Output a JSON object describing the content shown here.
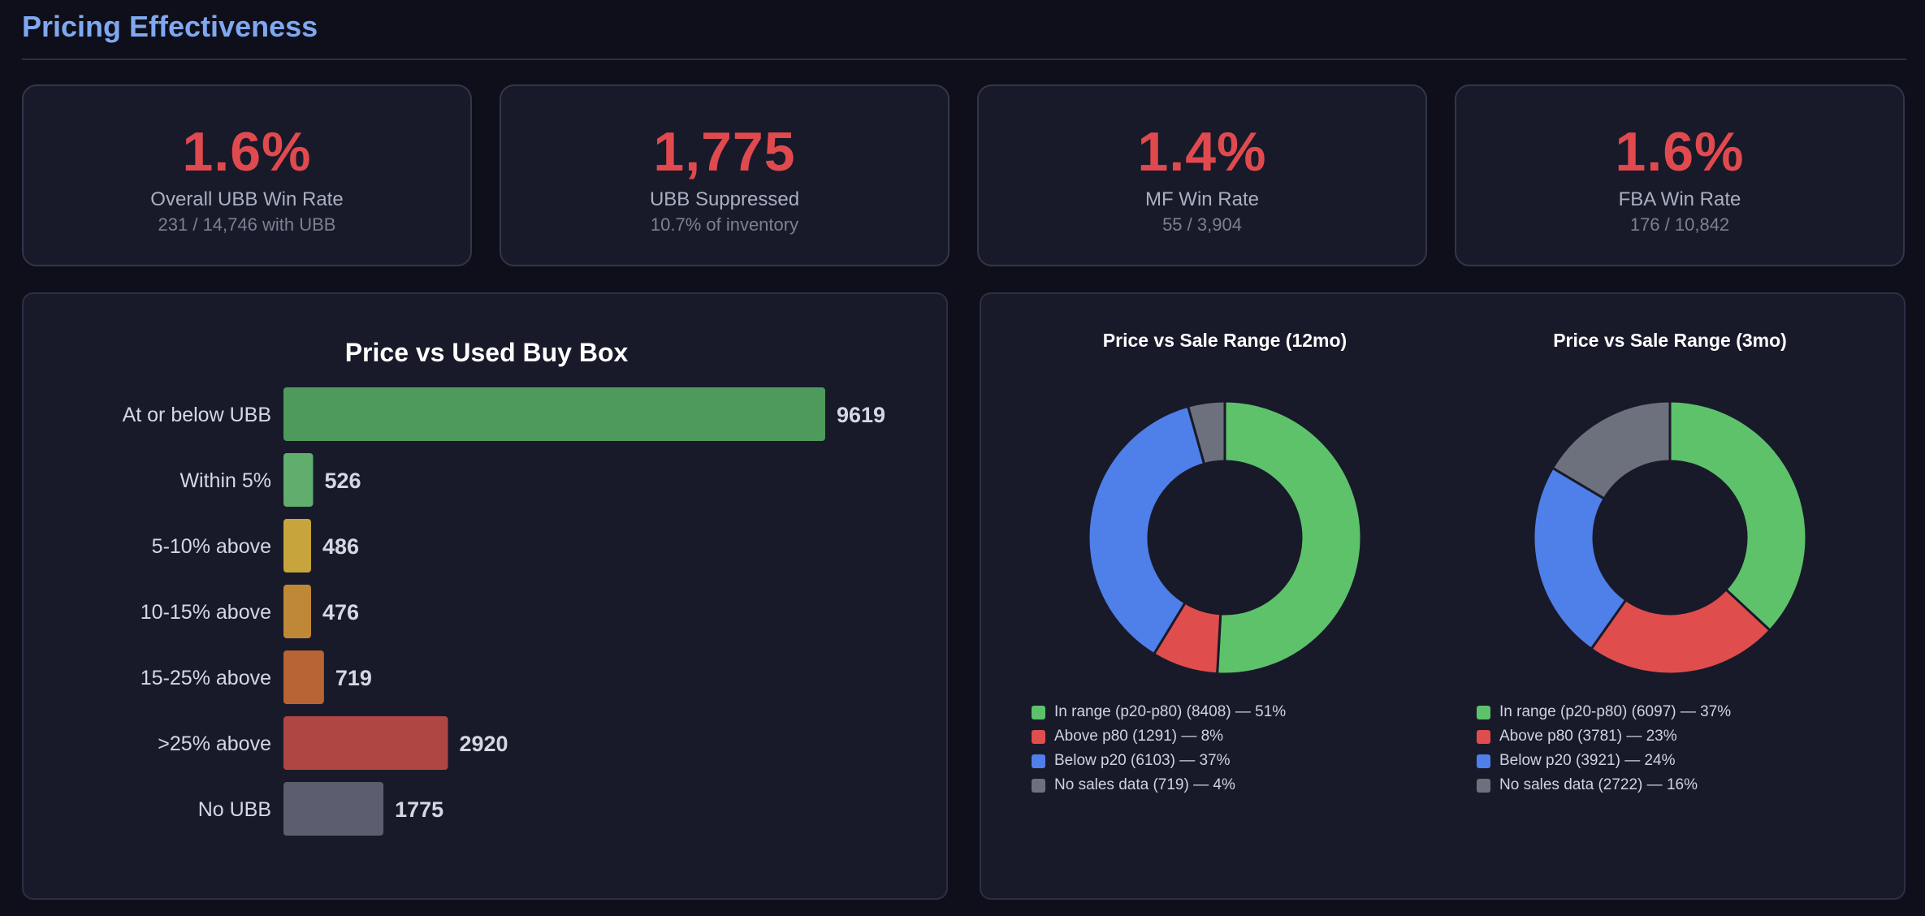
{
  "page": {
    "title": "Pricing Effectiveness"
  },
  "kpis": [
    {
      "value": "1.6%",
      "label": "Overall UBB Win Rate",
      "sub": "231 / 14,746 with UBB"
    },
    {
      "value": "1,775",
      "label": "UBB Suppressed",
      "sub": "10.7% of inventory"
    },
    {
      "value": "1.4%",
      "label": "MF Win Rate",
      "sub": "55 / 3,904"
    },
    {
      "value": "1.6%",
      "label": "FBA Win Rate",
      "sub": "176 / 10,842"
    }
  ],
  "chart_data": [
    {
      "type": "bar",
      "orientation": "horizontal",
      "title": "Price vs Used Buy Box",
      "categories": [
        "At or below UBB",
        "Within 5%",
        "5-10% above",
        "10-15% above",
        "15-25% above",
        ">25% above",
        "No UBB"
      ],
      "values": [
        9619,
        526,
        486,
        476,
        719,
        2920,
        1775
      ],
      "colors": [
        "#4e9a5c",
        "#60ad6e",
        "#c8a43c",
        "#bf8836",
        "#b86434",
        "#b04644",
        "#5c5e70"
      ]
    },
    {
      "type": "pie",
      "title": "Price vs Sale Range (12mo)",
      "labels": [
        "In range (p20-p80)",
        "Above p80",
        "Below p20",
        "No sales data"
      ],
      "values": [
        8408,
        1291,
        6103,
        719
      ],
      "percents": [
        51,
        8,
        37,
        4
      ],
      "legend": [
        "In range (p20-p80) (8408) — 51%",
        "Above p80 (1291) — 8%",
        "Below p20 (6103) — 37%",
        "No sales data (719) — 4%"
      ],
      "colors": [
        "#5ec26a",
        "#e04d4d",
        "#4f7fe8",
        "#6d717d"
      ]
    },
    {
      "type": "pie",
      "title": "Price vs Sale Range (3mo)",
      "labels": [
        "In range (p20-p80)",
        "Above p80",
        "Below p20",
        "No sales data"
      ],
      "values": [
        6097,
        3781,
        3921,
        2722
      ],
      "percents": [
        37,
        23,
        24,
        16
      ],
      "legend": [
        "In range (p20-p80) (6097) — 37%",
        "Above p80 (3781) — 23%",
        "Below p20 (3921) — 24%",
        "No sales data (2722) — 16%"
      ],
      "colors": [
        "#5ec26a",
        "#e04d4d",
        "#4f7fe8",
        "#6d717d"
      ]
    }
  ]
}
